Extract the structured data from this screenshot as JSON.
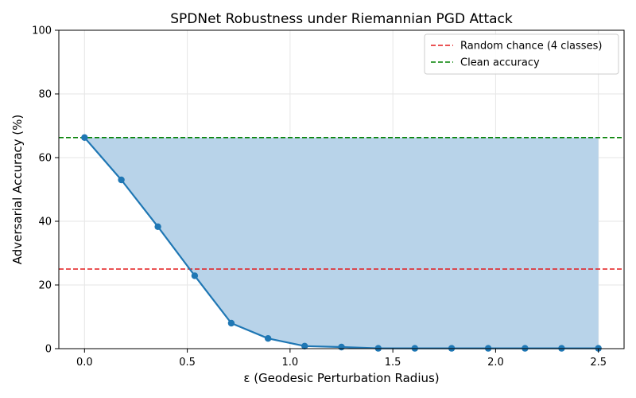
{
  "chart_data": {
    "type": "line",
    "title": "SPDNet Robustness under Riemannian PGD Attack",
    "xlabel": "ε (Geodesic Perturbation Radius)",
    "ylabel": "Adversarial Accuracy (%)",
    "xlim": [
      -0.125,
      2.625
    ],
    "ylim": [
      0,
      100
    ],
    "x_ticks": [
      0.0,
      0.5,
      1.0,
      1.5,
      2.0,
      2.5
    ],
    "x_tick_labels": [
      "0.0",
      "0.5",
      "1.0",
      "1.5",
      "2.0",
      "2.5"
    ],
    "y_ticks": [
      0,
      20,
      40,
      60,
      80,
      100
    ],
    "y_tick_labels": [
      "0",
      "20",
      "40",
      "60",
      "80",
      "100"
    ],
    "grid": true,
    "legend_position": "top-right",
    "series": [
      {
        "kind": "line-markers",
        "color": "#1f77b4",
        "fill_to": "reference-line-clean",
        "fill_color": "#b8d3e9",
        "x": [
          0.0,
          0.179,
          0.357,
          0.536,
          0.714,
          0.893,
          1.071,
          1.25,
          1.429,
          1.607,
          1.786,
          1.964,
          2.143,
          2.321,
          2.5
        ],
        "y": [
          66.3,
          53.0,
          38.3,
          22.9,
          8.0,
          3.2,
          0.8,
          0.5,
          0.1,
          0.1,
          0.1,
          0.1,
          0.1,
          0.1,
          0.1
        ]
      }
    ],
    "reference_lines": [
      {
        "id": "reference-line-random",
        "label": "Random chance (4 classes)",
        "y": 25,
        "color": "#e41a1c",
        "style": "dashed"
      },
      {
        "id": "reference-line-clean",
        "label": "Clean accuracy",
        "y": 66.3,
        "color": "#008000",
        "style": "dashed"
      }
    ]
  }
}
